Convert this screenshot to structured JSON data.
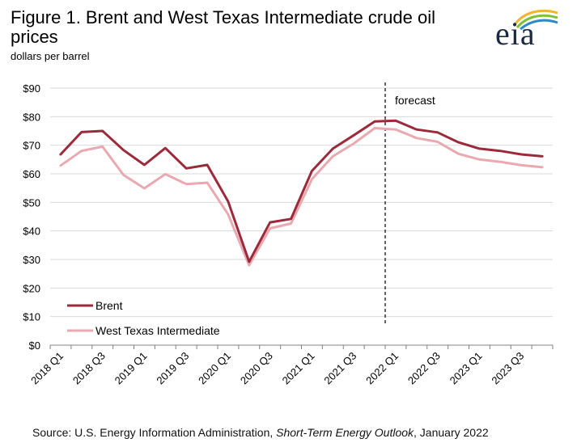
{
  "title": "Figure 1. Brent and West Texas Intermediate crude oil prices",
  "subtitle": "dollars per barrel",
  "logo_text": "eia",
  "source": {
    "prefix": "Source: U.S. Energy Information Administration, ",
    "publication": "Short-Term Energy Outlook",
    "suffix": ", January 2022"
  },
  "chart_data": {
    "type": "line",
    "title": "Figure 1. Brent and West Texas Intermediate crude oil prices",
    "ylabel": "dollars per barrel",
    "xlabel": "",
    "ylim": [
      0,
      90
    ],
    "yticks": [
      0,
      10,
      20,
      30,
      40,
      50,
      60,
      70,
      80,
      90
    ],
    "ytick_labels": [
      "$0",
      "$10",
      "$20",
      "$30",
      "$40",
      "$50",
      "$60",
      "$70",
      "$80",
      "$90"
    ],
    "grid": true,
    "legend_position": "bottom-left",
    "forecast_label": "forecast",
    "forecast_start": "2022 Q1",
    "categories": [
      "2018 Q1",
      "2018 Q2",
      "2018 Q3",
      "2018 Q4",
      "2019 Q1",
      "2019 Q2",
      "2019 Q3",
      "2019 Q4",
      "2020 Q1",
      "2020 Q2",
      "2020 Q3",
      "2020 Q4",
      "2021 Q1",
      "2021 Q2",
      "2021 Q3",
      "2021 Q4",
      "2022 Q1",
      "2022 Q2",
      "2022 Q3",
      "2022 Q4",
      "2023 Q1",
      "2023 Q2",
      "2023 Q3",
      "2023 Q4"
    ],
    "tick_labels": [
      "2018 Q1",
      "2018 Q3",
      "2019 Q1",
      "2019 Q3",
      "2020 Q1",
      "2020 Q3",
      "2021 Q1",
      "2021 Q3",
      "2022 Q1",
      "2022 Q3",
      "2023 Q1",
      "2023 Q3"
    ],
    "series": [
      {
        "name": "Brent",
        "color": "#9b2a3a",
        "values": [
          66.8,
          74.6,
          75.0,
          68.3,
          63.1,
          69.0,
          61.9,
          63.1,
          50.3,
          29.2,
          43.0,
          44.2,
          61.0,
          68.8,
          73.5,
          78.3,
          78.6,
          75.5,
          74.5,
          71.0,
          68.8,
          68.0,
          66.8,
          66.1
        ]
      },
      {
        "name": "West Texas Intermediate",
        "color": "#e8a9b0",
        "values": [
          62.9,
          68.0,
          69.5,
          59.6,
          54.9,
          59.9,
          56.4,
          56.9,
          45.8,
          28.0,
          40.9,
          42.6,
          58.1,
          66.1,
          70.6,
          76.0,
          75.5,
          72.5,
          71.2,
          67.0,
          65.0,
          64.2,
          63.0,
          62.3
        ]
      }
    ]
  }
}
